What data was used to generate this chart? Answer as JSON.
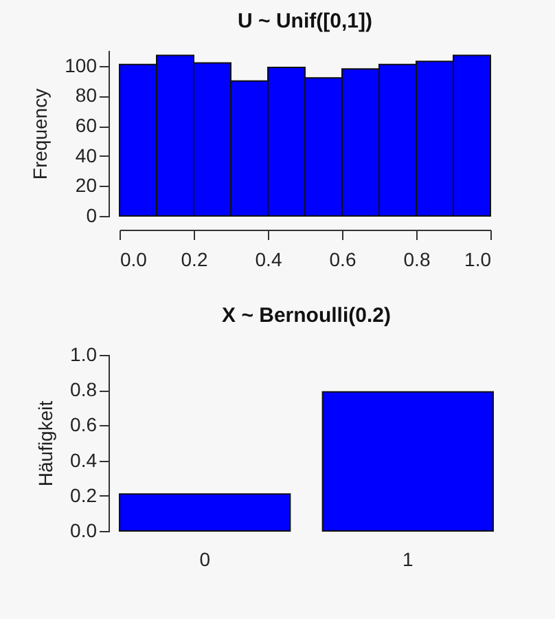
{
  "chart_data": [
    {
      "type": "histogram",
      "title": "U ~ Unif([0,1])",
      "ylabel": "Frequency",
      "bins": [
        0,
        0.1,
        0.2,
        0.3,
        0.4,
        0.5,
        0.6,
        0.7,
        0.8,
        0.9,
        1.0
      ],
      "values": [
        101,
        107,
        102,
        90,
        99,
        92,
        98,
        101,
        103,
        107
      ],
      "color": "#0000ff",
      "xlim": [
        0,
        1
      ],
      "xticks": [
        {
          "value": 0,
          "label": "0.0"
        },
        {
          "value": 0.2,
          "label": "0.2"
        },
        {
          "value": 0.4,
          "label": "0.4"
        },
        {
          "value": 0.6,
          "label": "0.6"
        },
        {
          "value": 0.8,
          "label": "0.8"
        },
        {
          "value": 1,
          "label": "1.0"
        }
      ],
      "ylim": [
        0,
        110
      ],
      "yticks": [
        0,
        20,
        40,
        60,
        80,
        100
      ],
      "grid": false
    },
    {
      "type": "bar",
      "title": "X ~ Bernoulli(0.2)",
      "ylabel": "Häufigkeit",
      "categories": [
        "0",
        "1"
      ],
      "values": [
        0.21,
        0.79
      ],
      "color": "#0000ff",
      "ylim": [
        0,
        1
      ],
      "yticks": [
        {
          "value": 0,
          "label": "0.0"
        },
        {
          "value": 0.2,
          "label": "0.2"
        },
        {
          "value": 0.4,
          "label": "0.4"
        },
        {
          "value": 0.6,
          "label": "0.6"
        },
        {
          "value": 0.8,
          "label": "0.8"
        },
        {
          "value": 1,
          "label": "1.0"
        }
      ],
      "grid": false
    }
  ]
}
